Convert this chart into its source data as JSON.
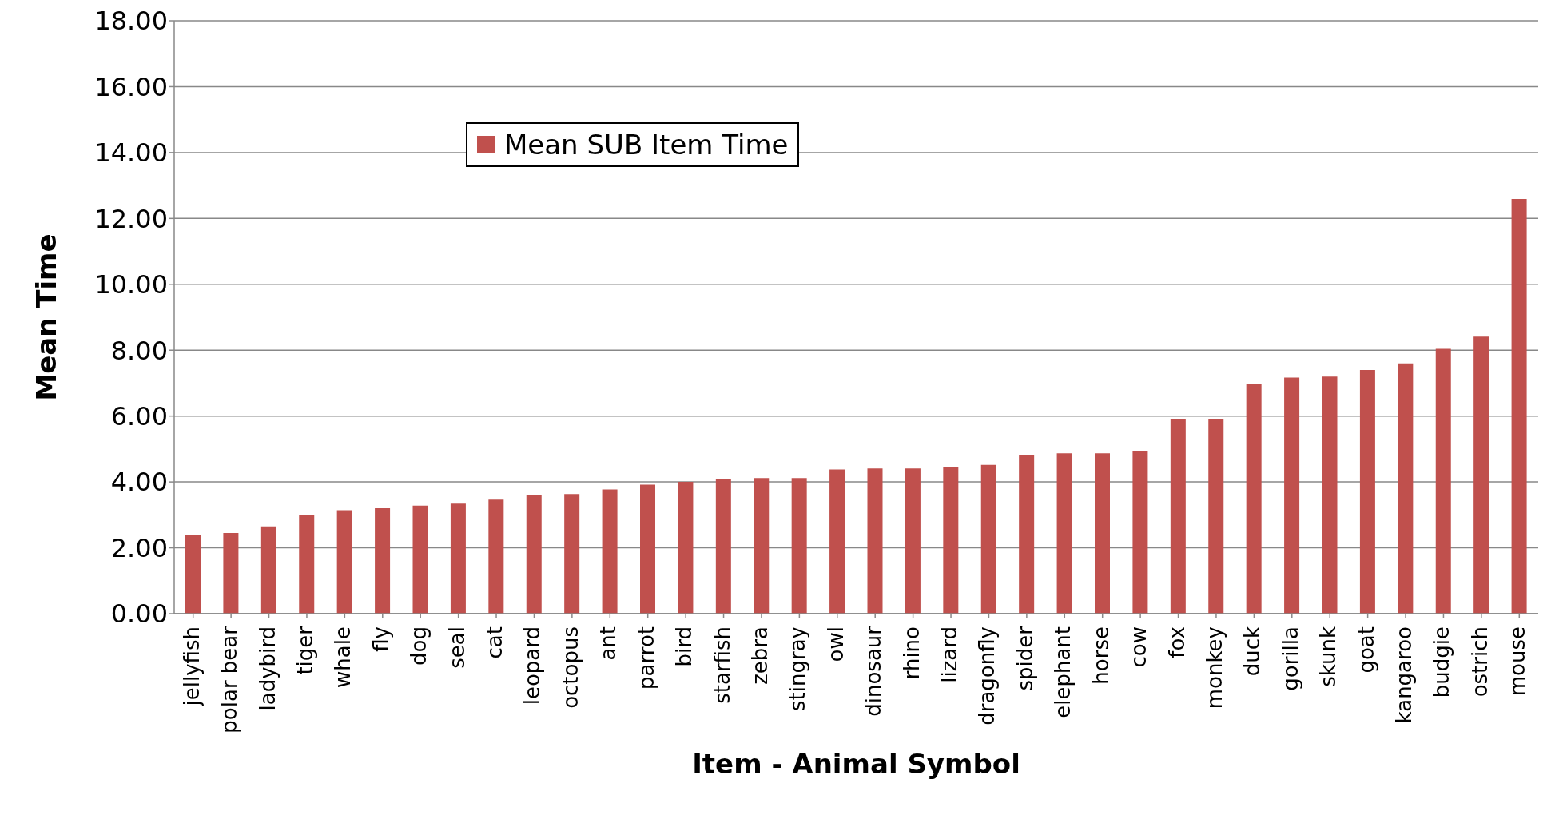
{
  "chart_data": {
    "type": "bar",
    "xlabel": "Item - Animal Symbol",
    "ylabel": "Mean Time",
    "categories": [
      "jellyfish",
      "polar bear",
      "ladybird",
      "tiger",
      "whale",
      "fly",
      "dog",
      "seal",
      "cat",
      "leopard",
      "octopus",
      "ant",
      "parrot",
      "bird",
      "starfish",
      "zebra",
      "stingray",
      "owl",
      "dinosaur",
      "rhino",
      "lizard",
      "dragonfly",
      "spider",
      "elephant",
      "horse",
      "cow",
      "fox",
      "monkey",
      "duck",
      "gorilla",
      "skunk",
      "goat",
      "kangaroo",
      "budgie",
      "ostrich",
      "mouse"
    ],
    "series": [
      {
        "name": "Mean SUB Item Time",
        "color": "#c0504d",
        "values": [
          2.39,
          2.45,
          2.65,
          3.0,
          3.14,
          3.2,
          3.28,
          3.34,
          3.46,
          3.6,
          3.63,
          3.77,
          3.92,
          4.0,
          4.09,
          4.12,
          4.12,
          4.38,
          4.41,
          4.41,
          4.46,
          4.52,
          4.81,
          4.87,
          4.87,
          4.95,
          5.9,
          5.9,
          6.97,
          7.17,
          7.2,
          7.4,
          7.6,
          8.04,
          8.41,
          12.59
        ]
      }
    ],
    "ylim": [
      0,
      18
    ],
    "yticks": [
      {
        "value": 0,
        "label": "0.00"
      },
      {
        "value": 2,
        "label": "2.00"
      },
      {
        "value": 4,
        "label": "4.00"
      },
      {
        "value": 6,
        "label": "6.00"
      },
      {
        "value": 8,
        "label": "8.00"
      },
      {
        "value": 10,
        "label": "10.00"
      },
      {
        "value": 12,
        "label": "12.00"
      },
      {
        "value": 14,
        "label": "14.00"
      },
      {
        "value": 16,
        "label": "16.00"
      },
      {
        "value": 18,
        "label": "18.00"
      }
    ],
    "grid": "y",
    "legend": "top left"
  }
}
